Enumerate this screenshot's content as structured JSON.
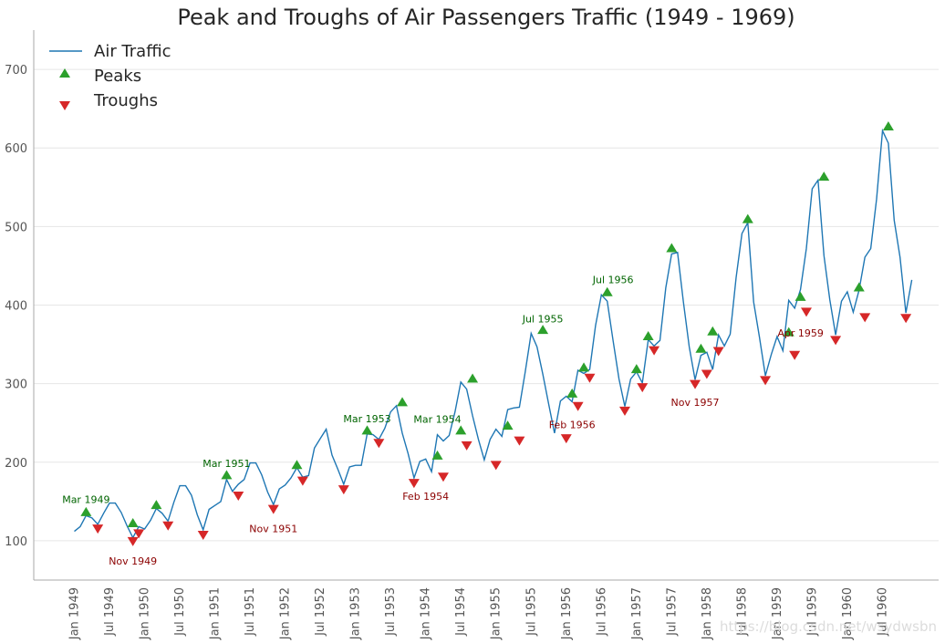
{
  "colors": {
    "line": "#1f77b4",
    "peak": "#2ca02c",
    "trough": "#d62728",
    "peak_label": "#006400",
    "trough_label": "#8b0000",
    "grid": "#e6e6e6",
    "axis": "#aaaaaa"
  },
  "watermark": "https://blog.csdn.net/wsydwsbn",
  "chart_data": {
    "type": "line",
    "title": "Peak and Troughs of Air Passengers Traffic (1949 - 1969)",
    "xlabel": "",
    "ylabel": "",
    "ylim": [
      50,
      750
    ],
    "yticks": [
      100,
      200,
      300,
      400,
      500,
      600,
      700
    ],
    "grid": true,
    "legend_position": "top-left",
    "legend": [
      "Air Traffic",
      "Peaks",
      "Troughs"
    ],
    "xtick_labels": [
      "Jan 1949",
      "Jul 1949",
      "Jan 1950",
      "Jul 1950",
      "Jan 1951",
      "Jul 1951",
      "Jan 1952",
      "Jul 1952",
      "Jan 1953",
      "Jul 1953",
      "Jan 1954",
      "Jul 1954",
      "Jan 1955",
      "Jul 1955",
      "Jan 1956",
      "Jul 1956",
      "Jan 1957",
      "Jul 1957",
      "Jan 1958",
      "Jul 1958",
      "Jan 1959",
      "Jul 1959",
      "Jan 1960",
      "Jul 1960"
    ],
    "series": [
      {
        "name": "Air Traffic",
        "values": [
          112,
          118,
          132,
          129,
          121,
          135,
          148,
          148,
          136,
          119,
          104,
          118,
          115,
          126,
          141,
          135,
          125,
          149,
          170,
          170,
          158,
          133,
          114,
          140,
          145,
          150,
          178,
          163,
          172,
          178,
          199,
          199,
          184,
          162,
          146,
          166,
          171,
          180,
          193,
          181,
          183,
          218,
          230,
          242,
          209,
          191,
          172,
          194,
          196,
          196,
          236,
          235,
          229,
          243,
          264,
          272,
          237,
          211,
          180,
          201,
          204,
          188,
          235,
          227,
          234,
          264,
          302,
          293,
          259,
          229,
          203,
          229,
          242,
          233,
          267,
          269,
          270,
          315,
          364,
          347,
          312,
          274,
          237,
          278,
          284,
          277,
          317,
          313,
          318,
          374,
          413,
          405,
          355,
          306,
          271,
          306,
          315,
          301,
          356,
          348,
          355,
          422,
          465,
          467,
          404,
          347,
          305,
          336,
          340,
          318,
          362,
          348,
          363,
          435,
          491,
          505,
          404,
          359,
          310,
          337,
          360,
          342,
          406,
          396,
          420,
          472,
          548,
          559,
          463,
          407,
          362,
          405,
          417,
          391,
          419,
          461,
          472,
          535,
          622,
          606,
          508,
          461,
          390,
          432
        ]
      }
    ],
    "peaks": [
      {
        "index": 2,
        "value": 136
      },
      {
        "index": 14,
        "value": 145
      },
      {
        "index": 26,
        "value": 183
      },
      {
        "index": 38,
        "value": 196
      },
      {
        "index": 50,
        "value": 240
      },
      {
        "index": 56,
        "value": 276
      },
      {
        "index": 62,
        "value": 208
      },
      {
        "index": 66,
        "value": 240
      },
      {
        "index": 68,
        "value": 306
      },
      {
        "index": 74,
        "value": 246
      },
      {
        "index": 80,
        "value": 368
      },
      {
        "index": 85,
        "value": 287
      },
      {
        "index": 87,
        "value": 320
      },
      {
        "index": 91,
        "value": 416
      },
      {
        "index": 96,
        "value": 318
      },
      {
        "index": 98,
        "value": 360
      },
      {
        "index": 102,
        "value": 472
      },
      {
        "index": 107,
        "value": 344
      },
      {
        "index": 109,
        "value": 366
      },
      {
        "index": 115,
        "value": 509
      },
      {
        "index": 122,
        "value": 365
      },
      {
        "index": 124,
        "value": 410
      },
      {
        "index": 128,
        "value": 563
      },
      {
        "index": 134,
        "value": 422
      },
      {
        "index": 139,
        "value": 627
      },
      {
        "index": 10,
        "value": 122
      }
    ],
    "troughs": [
      {
        "index": 4,
        "value": 116
      },
      {
        "index": 10,
        "value": 100
      },
      {
        "index": 11,
        "value": 110
      },
      {
        "index": 16,
        "value": 120
      },
      {
        "index": 22,
        "value": 108
      },
      {
        "index": 28,
        "value": 158
      },
      {
        "index": 34,
        "value": 141
      },
      {
        "index": 39,
        "value": 177
      },
      {
        "index": 46,
        "value": 166
      },
      {
        "index": 52,
        "value": 225
      },
      {
        "index": 58,
        "value": 174
      },
      {
        "index": 63,
        "value": 182
      },
      {
        "index": 67,
        "value": 222
      },
      {
        "index": 72,
        "value": 197
      },
      {
        "index": 76,
        "value": 228
      },
      {
        "index": 84,
        "value": 231
      },
      {
        "index": 86,
        "value": 272
      },
      {
        "index": 88,
        "value": 308
      },
      {
        "index": 94,
        "value": 266
      },
      {
        "index": 97,
        "value": 296
      },
      {
        "index": 99,
        "value": 343
      },
      {
        "index": 106,
        "value": 300
      },
      {
        "index": 108,
        "value": 313
      },
      {
        "index": 110,
        "value": 342
      },
      {
        "index": 118,
        "value": 305
      },
      {
        "index": 123,
        "value": 337
      },
      {
        "index": 125,
        "value": 392
      },
      {
        "index": 130,
        "value": 356
      },
      {
        "index": 135,
        "value": 385
      },
      {
        "index": 142,
        "value": 384
      }
    ],
    "annotations": [
      {
        "text": "Mar 1949",
        "kind": "peak",
        "index": 2,
        "value": 148
      },
      {
        "text": "Mar 1951",
        "kind": "peak",
        "index": 26,
        "value": 194
      },
      {
        "text": "Mar 1953",
        "kind": "peak",
        "index": 50,
        "value": 251
      },
      {
        "text": "Mar 1954",
        "kind": "peak",
        "index": 62,
        "value": 250
      },
      {
        "text": "Jul 1955",
        "kind": "peak",
        "index": 80,
        "value": 378
      },
      {
        "text": "Jul 1956",
        "kind": "peak",
        "index": 92,
        "value": 428
      },
      {
        "text": "Nov 1949",
        "kind": "trough",
        "index": 10,
        "value": 70
      },
      {
        "text": "Nov 1951",
        "kind": "trough",
        "index": 34,
        "value": 111
      },
      {
        "text": "Feb 1954",
        "kind": "trough",
        "index": 60,
        "value": 152
      },
      {
        "text": "Feb 1956",
        "kind": "trough",
        "index": 85,
        "value": 243
      },
      {
        "text": "Nov 1957",
        "kind": "trough",
        "index": 106,
        "value": 272
      },
      {
        "text": "Apr 1959",
        "kind": "trough",
        "index": 124,
        "value": 360
      }
    ]
  }
}
